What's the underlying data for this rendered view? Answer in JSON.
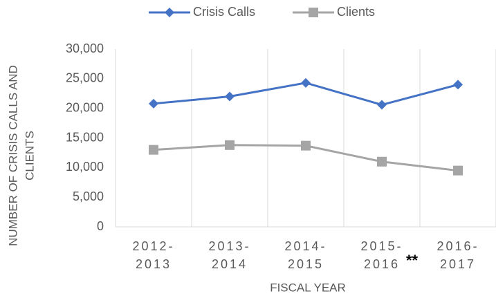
{
  "chart_data": {
    "type": "line",
    "y_axis_title": [
      "NUMBER OF CRISIS CALLS AND",
      "CLIENTS"
    ],
    "x_axis_title": "FISCAL YEAR",
    "categories": [
      [
        "2012-",
        "2013"
      ],
      [
        "2013-",
        "2014"
      ],
      [
        "2014-",
        "2015"
      ],
      [
        "2015-",
        "2016"
      ],
      [
        "2016-",
        "2017"
      ]
    ],
    "annotations": [
      {
        "text": "**"
      }
    ],
    "series": [
      {
        "name": "Crisis Calls",
        "color": "#4472c4",
        "marker": "diamond",
        "values": [
          20800,
          22000,
          24300,
          20600,
          24000
        ]
      },
      {
        "name": "Clients",
        "color": "#a5a5a5",
        "marker": "square",
        "values": [
          13000,
          13800,
          13700,
          11000,
          9500
        ]
      }
    ],
    "ylim": [
      0,
      30000
    ],
    "yticks": [
      {
        "value": 0,
        "label": "0"
      },
      {
        "value": 5000,
        "label": "5,000"
      },
      {
        "value": 10000,
        "label": "10,000"
      },
      {
        "value": 15000,
        "label": "15,000"
      },
      {
        "value": 20000,
        "label": "20,000"
      },
      {
        "value": 25000,
        "label": "25,000"
      },
      {
        "value": 30000,
        "label": "30,000"
      }
    ],
    "legend": "top"
  }
}
